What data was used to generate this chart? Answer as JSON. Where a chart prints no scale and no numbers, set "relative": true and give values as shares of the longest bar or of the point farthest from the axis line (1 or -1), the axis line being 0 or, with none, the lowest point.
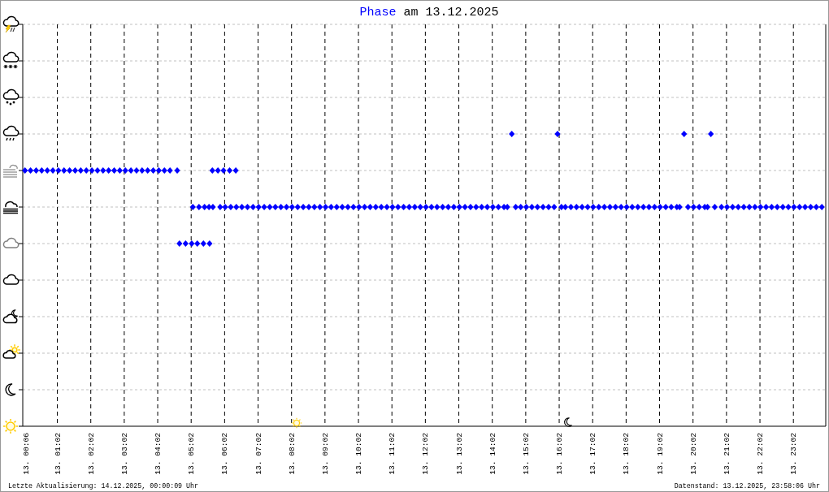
{
  "chart_data": {
    "type": "scatter",
    "title": "Phase am 13.12.2025",
    "annotations": [
      "Letzte Aktualisierung: 14.12.2025, 00:00:09 Uhr",
      "Datenstand: 13.12.2025, 23:58:06 Uhr"
    ],
    "relative": true,
    "color": "#0000ff",
    "marker": "diamond",
    "grid": true,
    "tick_labels": "x",
    "xlim": [
      "2025-12-13T00:00",
      "2025-12-14T00:00"
    ],
    "xticks": [
      {
        "value": "2025-12-13T00:06",
        "label": "13. 00:06"
      },
      {
        "value": "2025-12-13T01:02",
        "label": "13. 01:02"
      },
      {
        "value": "2025-12-13T02:02",
        "label": "13. 02:02"
      },
      {
        "value": "2025-12-13T03:02",
        "label": "13. 03:02"
      },
      {
        "value": "2025-12-13T04:02",
        "label": "13. 04:02"
      },
      {
        "value": "2025-12-13T05:02",
        "label": "13. 05:02"
      },
      {
        "value": "2025-12-13T06:02",
        "label": "13. 06:02"
      },
      {
        "value": "2025-12-13T07:02",
        "label": "13. 07:02"
      },
      {
        "value": "2025-12-13T08:02",
        "label": "13. 08:02"
      },
      {
        "value": "2025-12-13T09:02",
        "label": "13. 09:02"
      },
      {
        "value": "2025-12-13T10:02",
        "label": "13. 10:02"
      },
      {
        "value": "2025-12-13T11:02",
        "label": "13. 11:02"
      },
      {
        "value": "2025-12-13T12:02",
        "label": "13. 12:02"
      },
      {
        "value": "2025-12-13T13:02",
        "label": "13. 13:02"
      },
      {
        "value": "2025-12-13T14:02",
        "label": "13. 14:02"
      },
      {
        "value": "2025-12-13T15:02",
        "label": "13. 15:02"
      },
      {
        "value": "2025-12-13T16:02",
        "label": "13. 16:02"
      },
      {
        "value": "2025-12-13T17:02",
        "label": "13. 17:02"
      },
      {
        "value": "2025-12-13T18:02",
        "label": "13. 18:02"
      },
      {
        "value": "2025-12-13T19:02",
        "label": "13. 19:02"
      },
      {
        "value": "2025-12-13T20:02",
        "label": "13. 20:02"
      },
      {
        "value": "2025-12-13T21:02",
        "label": "13. 21:02"
      },
      {
        "value": "2025-12-13T22:02",
        "label": "13. 22:02"
      },
      {
        "value": "2025-12-13T23:02",
        "label": "13. 23:02"
      }
    ],
    "x": [
      "2025-12-13T00:04",
      "2025-12-13T00:14",
      "2025-12-13T00:24",
      "2025-12-13T00:34",
      "2025-12-13T00:44",
      "2025-12-13T00:54",
      "2025-12-13T01:04",
      "2025-12-13T01:14",
      "2025-12-13T01:24",
      "2025-12-13T01:34",
      "2025-12-13T01:44",
      "2025-12-13T01:54",
      "2025-12-13T02:04",
      "2025-12-13T02:14",
      "2025-12-13T02:24",
      "2025-12-13T02:34",
      "2025-12-13T02:44",
      "2025-12-13T02:54",
      "2025-12-13T03:04",
      "2025-12-13T03:14",
      "2025-12-13T03:24",
      "2025-12-13T03:34",
      "2025-12-13T03:44",
      "2025-12-13T03:54",
      "2025-12-13T04:04",
      "2025-12-13T04:14",
      "2025-12-13T04:24",
      "2025-12-13T04:37",
      "2025-12-13T04:41",
      "2025-12-13T04:52",
      "2025-12-13T05:03",
      "2025-12-13T05:05",
      "2025-12-13T05:13",
      "2025-12-13T05:16",
      "2025-12-13T05:24",
      "2025-12-13T05:26",
      "2025-12-13T05:34",
      "2025-12-13T05:35",
      "2025-12-13T05:40",
      "2025-12-13T05:41",
      "2025-12-13T05:50",
      "2025-12-13T05:54",
      "2025-12-13T06:00",
      "2025-12-13T06:03",
      "2025-12-13T06:11",
      "2025-12-13T06:13",
      "2025-12-13T06:22",
      "2025-12-13T06:23",
      "2025-12-13T06:33",
      "2025-12-13T06:43",
      "2025-12-13T06:53",
      "2025-12-13T07:03",
      "2025-12-13T07:13",
      "2025-12-13T07:23",
      "2025-12-13T07:33",
      "2025-12-13T07:43",
      "2025-12-13T07:53",
      "2025-12-13T08:03",
      "2025-12-13T08:13",
      "2025-12-13T08:23",
      "2025-12-13T08:33",
      "2025-12-13T08:43",
      "2025-12-13T08:53",
      "2025-12-13T09:03",
      "2025-12-13T09:13",
      "2025-12-13T09:23",
      "2025-12-13T09:33",
      "2025-12-13T09:43",
      "2025-12-13T09:53",
      "2025-12-13T10:03",
      "2025-12-13T10:13",
      "2025-12-13T10:23",
      "2025-12-13T10:33",
      "2025-12-13T10:43",
      "2025-12-13T10:53",
      "2025-12-13T11:03",
      "2025-12-13T11:13",
      "2025-12-13T11:23",
      "2025-12-13T11:33",
      "2025-12-13T11:43",
      "2025-12-13T11:53",
      "2025-12-13T12:03",
      "2025-12-13T12:13",
      "2025-12-13T12:23",
      "2025-12-13T12:33",
      "2025-12-13T12:43",
      "2025-12-13T12:53",
      "2025-12-13T13:03",
      "2025-12-13T13:13",
      "2025-12-13T13:23",
      "2025-12-13T13:33",
      "2025-12-13T13:43",
      "2025-12-13T13:53",
      "2025-12-13T14:03",
      "2025-12-13T14:13",
      "2025-12-13T14:23",
      "2025-12-13T14:29",
      "2025-12-13T14:37",
      "2025-12-13T14:44",
      "2025-12-13T14:53",
      "2025-12-13T15:03",
      "2025-12-13T15:13",
      "2025-12-13T15:23",
      "2025-12-13T15:33",
      "2025-12-13T15:43",
      "2025-12-13T15:53",
      "2025-12-13T15:59",
      "2025-12-13T16:06",
      "2025-12-13T16:13",
      "2025-12-13T16:23",
      "2025-12-13T16:33",
      "2025-12-13T16:43",
      "2025-12-13T16:53",
      "2025-12-13T17:03",
      "2025-12-13T17:13",
      "2025-12-13T17:23",
      "2025-12-13T17:33",
      "2025-12-13T17:43",
      "2025-12-13T17:53",
      "2025-12-13T18:03",
      "2025-12-13T18:13",
      "2025-12-13T18:23",
      "2025-12-13T18:33",
      "2025-12-13T18:43",
      "2025-12-13T18:53",
      "2025-12-13T19:03",
      "2025-12-13T19:13",
      "2025-12-13T19:23",
      "2025-12-13T19:33",
      "2025-12-13T19:38",
      "2025-12-13T19:46",
      "2025-12-13T19:53",
      "2025-12-13T20:03",
      "2025-12-13T20:13",
      "2025-12-13T20:23",
      "2025-12-13T20:28",
      "2025-12-13T20:34",
      "2025-12-13T20:41",
      "2025-12-13T20:53",
      "2025-12-13T21:03",
      "2025-12-13T21:13",
      "2025-12-13T21:23",
      "2025-12-13T21:33",
      "2025-12-13T21:43",
      "2025-12-13T21:53",
      "2025-12-13T22:03",
      "2025-12-13T22:13",
      "2025-12-13T22:23",
      "2025-12-13T22:33",
      "2025-12-13T22:43",
      "2025-12-13T22:53",
      "2025-12-13T23:03",
      "2025-12-13T23:13",
      "2025-12-13T23:23",
      "2025-12-13T23:33",
      "2025-12-13T23:43",
      "2025-12-13T23:53"
    ],
    "values": [
      0.875,
      0.875,
      0.875,
      0.875,
      0.875,
      0.875,
      0.875,
      0.875,
      0.875,
      0.875,
      0.875,
      0.875,
      0.875,
      0.875,
      0.875,
      0.875,
      0.875,
      0.875,
      0.875,
      0.875,
      0.875,
      0.875,
      0.875,
      0.875,
      0.875,
      0.875,
      0.875,
      0.875,
      0.625,
      0.625,
      0.625,
      0.75,
      0.625,
      0.75,
      0.625,
      0.75,
      0.75,
      0.625,
      0.875,
      0.75,
      0.875,
      0.75,
      0.875,
      0.75,
      0.875,
      0.75,
      0.875,
      0.75,
      0.75,
      0.75,
      0.75,
      0.75,
      0.75,
      0.75,
      0.75,
      0.75,
      0.75,
      0.75,
      0.75,
      0.75,
      0.75,
      0.75,
      0.75,
      0.75,
      0.75,
      0.75,
      0.75,
      0.75,
      0.75,
      0.75,
      0.75,
      0.75,
      0.75,
      0.75,
      0.75,
      0.75,
      0.75,
      0.75,
      0.75,
      0.75,
      0.75,
      0.75,
      0.75,
      0.75,
      0.75,
      0.75,
      0.75,
      0.75,
      0.75,
      0.75,
      0.75,
      0.75,
      0.75,
      0.75,
      0.75,
      0.75,
      0.75,
      1,
      0.75,
      0.75,
      0.75,
      0.75,
      0.75,
      0.75,
      0.75,
      0.75,
      1,
      0.75,
      0.75,
      0.75,
      0.75,
      0.75,
      0.75,
      0.75,
      0.75,
      0.75,
      0.75,
      0.75,
      0.75,
      0.75,
      0.75,
      0.75,
      0.75,
      0.75,
      0.75,
      0.75,
      0.75,
      0.75,
      0.75,
      0.75,
      1,
      0.75,
      0.75,
      0.75,
      0.75,
      0.75,
      1,
      0.75,
      0.75,
      0.75,
      0.75,
      0.75,
      0.75,
      0.75,
      0.75,
      0.75,
      0.75,
      0.75,
      0.75,
      0.75,
      0.75,
      0.75,
      0.75,
      0.75,
      0.75,
      0.75,
      0.75
    ]
  }
}
